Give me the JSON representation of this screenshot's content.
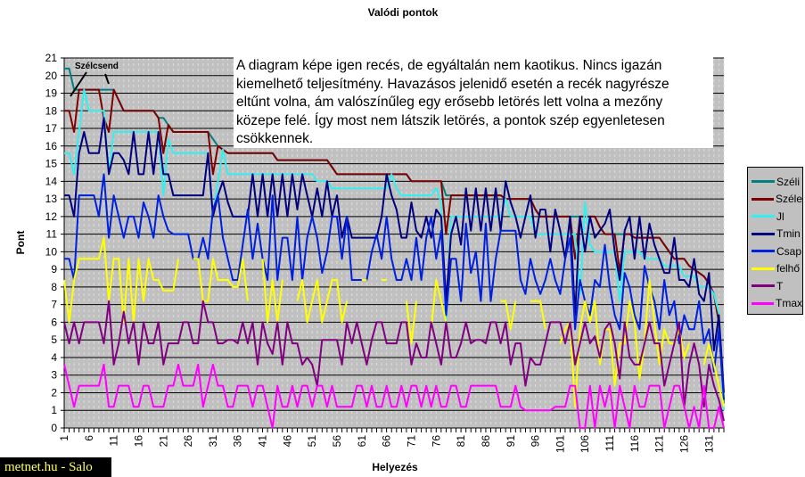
{
  "chart_data": {
    "type": "line",
    "title": "Valódi pontok",
    "xlabel": "Helyezés",
    "ylabel": "Pont",
    "xlim": [
      1,
      134
    ],
    "ylim": [
      0,
      21
    ],
    "x_tick_labels": [
      "1",
      "6",
      "11",
      "16",
      "21",
      "26",
      "31",
      "36",
      "41",
      "46",
      "51",
      "56",
      "61",
      "66",
      "71",
      "76",
      "81",
      "86",
      "91",
      "96",
      "101",
      "106",
      "111",
      "116",
      "121",
      "126",
      "131"
    ],
    "y_tick_labels": [
      "0",
      "1",
      "2",
      "3",
      "4",
      "5",
      "6",
      "7",
      "8",
      "9",
      "10",
      "11",
      "12",
      "13",
      "14",
      "15",
      "16",
      "17",
      "18",
      "19",
      "20",
      "21"
    ],
    "grid": "horizontal major lines",
    "legend_position": "right",
    "background": "#c0c0c0",
    "series": [
      {
        "name": "Széli",
        "color": "#008080",
        "values": [
          20.4,
          20.4,
          19.2,
          19.2,
          19.2,
          19.2,
          19.2,
          19.2,
          19.2,
          19.2,
          19.2,
          18.6,
          18,
          18,
          18,
          18,
          18,
          18,
          18,
          17.6,
          17.6,
          17.2,
          16.8,
          16.8,
          16.8,
          16.8,
          16.8,
          16.8,
          16.8,
          16.8,
          16.4,
          16.0,
          15.8,
          15.6,
          15.6,
          15.6,
          15.6,
          15.6,
          15.6,
          15.6,
          15.6,
          15.6,
          15.6,
          15.2,
          15.2,
          15.2,
          15.2,
          15.2,
          15.2,
          15.2,
          15.2,
          15.2,
          15.2,
          15.2,
          14.8,
          14.4,
          14.4,
          14.4,
          14.4,
          14.4,
          14.4,
          14.4,
          14.4,
          14.4,
          14.4,
          14.4,
          14.4,
          14.4,
          14.4,
          14.4,
          14.0,
          14.0,
          14.0,
          14.0,
          14.0,
          14.0,
          14.0,
          13.2,
          13.2,
          13.2,
          13.2,
          13.2,
          13.2,
          13.2,
          13.2,
          13.2,
          13.2,
          13.2,
          13.2,
          13.0,
          13.0,
          13.0,
          13.0,
          13.0,
          13.0,
          12.4,
          12.0,
          12.0,
          12.0,
          12.0,
          12.0,
          12.0,
          12.0,
          12.0,
          12.0,
          12.0,
          12.0,
          12.0,
          11.4,
          11.0,
          11.0,
          11.0,
          11.0,
          11.0,
          11.0,
          10.8,
          10.8,
          10.8,
          10.8,
          10.8,
          10.8,
          10.4,
          10.0,
          9.6,
          9.6,
          9.6,
          9.2,
          9.0,
          8.8,
          8.6,
          8.2,
          7.6,
          6.0,
          1.4
        ]
      },
      {
        "name": "Széle",
        "color": "#800000",
        "values": [
          18,
          18,
          16.8,
          19.2,
          19.2,
          19.2,
          19.2,
          19.2,
          17.6,
          16.8,
          19.2,
          18.6,
          18,
          18,
          18,
          18,
          18,
          18,
          18,
          17.6,
          15.6,
          17.2,
          16.8,
          16.8,
          16.8,
          16.8,
          16.8,
          16.8,
          16.8,
          16.8,
          14.4,
          16.0,
          15.8,
          15.6,
          15.6,
          15.6,
          15.6,
          15.6,
          15.6,
          15.6,
          15.6,
          15.6,
          15.6,
          15.2,
          15.2,
          15.2,
          15.2,
          15.2,
          15.2,
          15.2,
          15.2,
          15.2,
          15.2,
          15.2,
          14.8,
          14.4,
          14.4,
          14.4,
          14.4,
          14.4,
          14.4,
          14.4,
          14.4,
          14.4,
          14.4,
          14.4,
          14.4,
          14.4,
          14.4,
          14.4,
          14.0,
          14.0,
          14.0,
          14.0,
          14.0,
          14.0,
          14.0,
          11.0,
          13.2,
          13.2,
          13.2,
          13.2,
          13.2,
          13.2,
          13.2,
          13.2,
          13.2,
          13.2,
          13.2,
          13.0,
          13.0,
          13.0,
          13.0,
          13.0,
          13.0,
          12.4,
          12.0,
          12.0,
          12.0,
          12.0,
          12.0,
          12.0,
          12.0,
          9.6,
          12.0,
          12.0,
          12.0,
          12.0,
          11.4,
          11.0,
          11.0,
          11.0,
          8.9,
          11.0,
          11.0,
          10.8,
          10.8,
          10.8,
          10.8,
          10.8,
          10.8,
          10.4,
          10.0,
          9.6,
          9.6,
          9.6,
          9.2,
          9.0,
          8.8,
          8.6,
          8.2,
          7.6,
          6.0,
          1.4
        ]
      },
      {
        "name": "Jl",
        "color": "#33f0f0",
        "values": [
          15.6,
          15.6,
          14.4,
          16.8,
          19.2,
          18.0,
          18.0,
          18.0,
          18.0,
          14.4,
          16.8,
          16.8,
          16.8,
          16.8,
          16.8,
          16.8,
          16.8,
          16.8,
          16.8,
          16.8,
          13.2,
          16.4,
          15.6,
          15.6,
          15.6,
          15.6,
          15.6,
          15.6,
          15.6,
          15.6,
          12.0,
          14.0,
          15.8,
          14.4,
          14.4,
          14.4,
          14.4,
          14.4,
          14.4,
          14.4,
          14.4,
          14.4,
          14.4,
          14.4,
          14.4,
          14.4,
          14.4,
          14.4,
          14.4,
          14.4,
          14.4,
          14.0,
          14.0,
          14.0,
          13.6,
          13.6,
          13.6,
          13.6,
          13.6,
          13.6,
          13.6,
          13.6,
          13.6,
          13.6,
          13.6,
          13.6,
          14.4,
          13.6,
          13.2,
          13.2,
          13.2,
          13.2,
          13.2,
          13.2,
          13.2,
          13.6,
          12.8,
          6.0,
          12.0,
          12.0,
          12.0,
          12.0,
          12.0,
          12.0,
          12.0,
          12.0,
          12.0,
          12.0,
          12.0,
          13.0,
          12.0,
          12.0,
          12.0,
          12.0,
          12.0,
          11.0,
          11.0,
          11.0,
          11.0,
          11.0,
          11.0,
          11.0,
          11.0,
          11.0,
          7.6,
          12.8,
          10.4,
          10.0,
          10.0,
          10.0,
          10.0,
          10.0,
          7.2,
          10.0,
          10.0,
          10.0,
          10.0,
          9.6,
          9.6,
          9.6,
          9.6,
          9.2,
          9.2,
          9.2,
          9.2,
          8.6,
          8.6,
          8.6,
          8.0,
          8.0,
          8.0,
          7.6,
          6.5,
          1.0
        ]
      },
      {
        "name": "Tmin",
        "color": "#000080",
        "values": [
          13.2,
          13.2,
          12,
          15.6,
          16.8,
          15.6,
          15.6,
          15.6,
          17.6,
          14.4,
          15.6,
          15.6,
          15.2,
          14.4,
          16.8,
          14.4,
          14.4,
          16.8,
          14.4,
          16.8,
          14.4,
          14.4,
          13.2,
          13.2,
          13.2,
          13.2,
          13.2,
          13.2,
          13.2,
          15.6,
          12.0,
          13.2,
          14.0,
          12.8,
          12.0,
          12.0,
          12.0,
          12.0,
          14.4,
          12.0,
          14.4,
          12.0,
          14.4,
          12.0,
          14.4,
          12.0,
          14.4,
          12.4,
          14.4,
          13.2,
          12.0,
          13.6,
          12.0,
          14.0,
          12.0,
          13.2,
          10.8,
          12.0,
          10.8,
          10.8,
          10.8,
          10.8,
          10.8,
          10.8,
          12.0,
          14.4,
          13.2,
          12.4,
          10.8,
          10.8,
          12.8,
          11.2,
          10.8,
          12.0,
          10.8,
          12.4,
          12.0,
          7.2,
          11.0,
          12.0,
          10.4,
          13.6,
          11.2,
          13.6,
          11.2,
          13.6,
          11.2,
          13.6,
          11.2,
          14.0,
          12.8,
          12.0,
          10.8,
          12.0,
          13.2,
          10.8,
          12.4,
          12.4,
          10.0,
          12.4,
          11.2,
          9.6,
          12.0,
          6.4,
          12.0,
          10.0,
          12.0,
          10.8,
          11.2,
          11.6,
          12.4,
          10.0,
          8.4,
          11.2,
          12.0,
          9.6,
          12.0,
          9.6,
          11.6,
          10.4,
          9.6,
          8.8,
          8.8,
          10.8,
          8.4,
          8.4,
          8.0,
          9.6,
          7.6,
          7.2,
          8.8,
          4.4,
          6.4,
          2.0
        ]
      },
      {
        "name": "Csap",
        "color": "#0020e0",
        "values": [
          9.6,
          9.6,
          8.4,
          13.2,
          13.2,
          13.2,
          13.2,
          12.0,
          14.4,
          10.8,
          13.2,
          12.0,
          10.8,
          12.0,
          12.0,
          10.8,
          12.8,
          12.0,
          10.8,
          13.2,
          12.0,
          11.2,
          11.0,
          11.0,
          11.0,
          11.0,
          9.6,
          9.6,
          10.8,
          9.6,
          12.4,
          13.2,
          10.8,
          9.6,
          8.4,
          8.4,
          10.4,
          12.4,
          9.6,
          11.6,
          9.6,
          8.4,
          13.2,
          8.4,
          10.8,
          10.8,
          8.4,
          12.0,
          8.4,
          10.8,
          12.0,
          10.8,
          8.8,
          10.0,
          12.0,
          12.0,
          9.6,
          12.0,
          8.4,
          8.4,
          8.4,
          8.4,
          10.0,
          11.0,
          9.6,
          12.0,
          9.6,
          8.4,
          8.4,
          9.6,
          8.4,
          10.8,
          8.4,
          10.8,
          12.0,
          9.6,
          11.2,
          6.4,
          9.6,
          9.6,
          7.2,
          11.6,
          8.8,
          10.0,
          7.2,
          11.6,
          7.2,
          9.6,
          11.2,
          11.2,
          11.2,
          11.2,
          8.4,
          7.6,
          9.6,
          8.4,
          7.6,
          8.4,
          9.6,
          8.4,
          7.6,
          9.6,
          10.8,
          5.6,
          8.4,
          7.2,
          6.4,
          8.4,
          8.0,
          10.4,
          8.0,
          6.4,
          5.6,
          8.8,
          8.0,
          6.4,
          5.6,
          9.2,
          8.0,
          7.2,
          5.6,
          8.4,
          6.4,
          7.2,
          4.8,
          6.4,
          5.6,
          5.6,
          7.2,
          4.8,
          5.6,
          3.2,
          5.6,
          1.6
        ]
      },
      {
        "name": "felhő",
        "color": "#ffff00",
        "values": [
          8.4,
          6.0,
          8.4,
          9.6,
          9.6,
          9.6,
          9.6,
          9.6,
          10.8,
          7.2,
          9.6,
          9.6,
          6.0,
          9.6,
          6.0,
          9.6,
          7.2,
          9.6,
          8.4,
          8.4,
          7.8,
          7.8,
          7.8,
          9.6,
          null,
          null,
          9.6,
          9.6,
          7.2,
          7.2,
          9.6,
          8.4,
          8.4,
          8.4,
          8.0,
          8.0,
          9.6,
          7.2,
          null,
          null,
          9.6,
          6.0,
          8.4,
          6.0,
          8.4,
          null,
          null,
          7.2,
          8.4,
          6.0,
          7.2,
          8.4,
          6.0,
          7.2,
          8.4,
          8.4,
          6.0,
          7.2,
          null,
          null,
          8.4,
          8.4,
          null,
          null,
          8.4,
          8.4,
          null,
          null,
          null,
          7.2,
          4.8,
          7.2,
          null,
          null,
          5.6,
          8.4,
          7.2,
          6.0,
          null,
          null,
          null,
          null,
          null,
          null,
          null,
          null,
          null,
          null,
          7.2,
          7.2,
          5.6,
          7.2,
          null,
          null,
          7.2,
          7.2,
          7.2,
          5.6,
          null,
          null,
          4.8,
          5.6,
          6.0,
          1.2,
          5.6,
          7.2,
          6.0,
          7.2,
          3.6,
          5.6,
          5.6,
          2.4,
          4.8,
          4.8,
          7.2,
          6.0,
          2.8,
          4.8,
          8.4,
          6.0,
          3.6,
          5.6,
          4.8,
          4.8,
          5.6,
          4.0,
          4.8,
          null,
          null,
          3.6,
          4.8,
          3.6,
          2.4,
          1.2
        ]
      },
      {
        "name": "T",
        "color": "#800080",
        "values": [
          6.0,
          4.8,
          6.0,
          4.8,
          6.0,
          6.0,
          6.0,
          6.0,
          4.8,
          7.2,
          3.6,
          4.8,
          6.6,
          4.8,
          6.0,
          3.6,
          6.0,
          4.8,
          4.8,
          6.0,
          3.6,
          4.8,
          4.8,
          4.8,
          6.0,
          6.0,
          4.8,
          4.8,
          7.2,
          6.0,
          6.0,
          4.8,
          4.8,
          5.0,
          5.0,
          4.8,
          6.0,
          4.8,
          6.0,
          3.6,
          6.0,
          4.8,
          4.2,
          6.0,
          3.6,
          6.0,
          4.8,
          4.8,
          3.6,
          4.0,
          3.6,
          2.4,
          5.0,
          5.0,
          5.0,
          5.0,
          3.6,
          6.0,
          4.8,
          6.0,
          4.8,
          3.6,
          5.0,
          6.0,
          6.0,
          4.8,
          4.8,
          4.8,
          6.0,
          6.0,
          3.6,
          4.8,
          4.0,
          4.0,
          6.0,
          4.8,
          3.6,
          6.0,
          4.0,
          4.0,
          4.8,
          6.0,
          4.8,
          5.0,
          5.0,
          4.8,
          6.0,
          6.0,
          4.8,
          6.0,
          3.6,
          4.8,
          4.8,
          2.4,
          4.0,
          3.6,
          3.6,
          4.8,
          6.0,
          6.0,
          6.0,
          4.8,
          6.0,
          3.6,
          4.8,
          6.0,
          4.8,
          5.2,
          4.0,
          5.6,
          6.0,
          4.8,
          2.8,
          6.0,
          4.0,
          3.6,
          3.6,
          4.8,
          6.0,
          4.8,
          4.8,
          2.4,
          3.6,
          4.8,
          6.0,
          1.2,
          3.6,
          4.8,
          3.6,
          1.2,
          3.6,
          2.4,
          1.6,
          0.4
        ]
      },
      {
        "name": "Tmax",
        "color": "#ff00ff",
        "values": [
          3.6,
          2.4,
          1.2,
          2.4,
          2.4,
          2.4,
          2.4,
          2.4,
          3.6,
          1.2,
          1.2,
          2.4,
          2.4,
          2.4,
          1.2,
          1.2,
          2.4,
          2.4,
          1.2,
          1.2,
          1.2,
          2.4,
          2.4,
          3.6,
          2.4,
          2.4,
          2.4,
          3.6,
          1.2,
          2.4,
          3.6,
          2.4,
          2.4,
          1.2,
          1.2,
          2.4,
          2.4,
          2.4,
          1.2,
          2.4,
          2.4,
          1.2,
          0.0,
          2.4,
          1.2,
          1.2,
          2.4,
          1.2,
          2.4,
          2.4,
          1.2,
          2.4,
          2.4,
          1.2,
          2.4,
          1.2,
          1.2,
          1.2,
          1.2,
          2.4,
          2.4,
          1.2,
          2.4,
          1.2,
          1.2,
          2.4,
          1.2,
          1.2,
          2.4,
          1.2,
          2.4,
          2.4,
          1.2,
          2.4,
          1.2,
          2.4,
          1.2,
          1.2,
          2.4,
          2.4,
          1.2,
          1.2,
          2.4,
          2.4,
          2.4,
          2.4,
          2.4,
          2.4,
          1.2,
          1.2,
          1.2,
          2.4,
          1.2,
          1.0,
          1.0,
          1.0,
          1.0,
          1.0,
          1.0,
          1.2,
          1.2,
          1.2,
          2.4,
          2.4,
          0.0,
          0.0,
          2.4,
          0.0,
          2.4,
          1.2,
          2.4,
          0.0,
          2.4,
          1.2,
          0.0,
          2.4,
          1.2,
          1.2,
          2.4,
          2.4,
          2.4,
          0.0,
          1.2,
          2.4,
          2.4,
          1.2,
          0.0,
          1.2,
          0.0,
          2.4,
          0.0,
          0.0,
          1.2,
          0.0
        ]
      }
    ],
    "annotations": {
      "callout": "Szélcsend",
      "note_lines": [
        "A diagram képe igen recés, de egyáltalán nem kaotikus. Nincs igazán",
        "kiemelhető teljesítmény. Havazásos jelenidő esetén a recék nagyrésze",
        "eltűnt volna, ám valószínűleg egy erősebb letörés lett volna a mezőny",
        "közepe felé. Így most nem látszik letörés, a pontok szép egyenletesen",
        "csökkennek."
      ]
    }
  },
  "watermark": "metnet.hu - Salo"
}
